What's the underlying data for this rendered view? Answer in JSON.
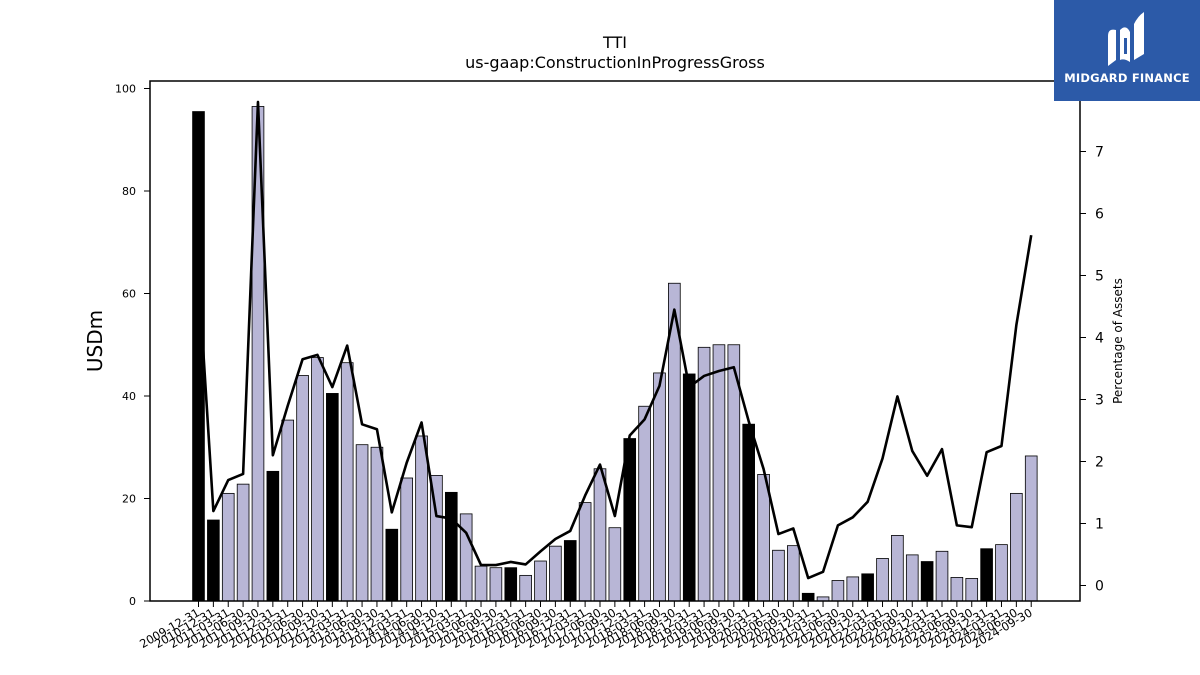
{
  "chart_data": {
    "type": "bar",
    "title": "TTI",
    "subtitle": "us-gaap:ConstructionInProgressGross",
    "ylabel": "USDm",
    "y2label": "Percentage of Assets",
    "ylim": [
      0,
      100
    ],
    "y2lim": [
      -0.25,
      8.0
    ],
    "yticks": [
      0,
      20,
      40,
      60,
      80,
      100
    ],
    "y2ticks": [
      0,
      1,
      2,
      3,
      4,
      5,
      6,
      7
    ],
    "categories": [
      "2009-12-31",
      "2010-12-31",
      "2011-03-31",
      "2011-06-30",
      "2011-09-30",
      "2011-12-31",
      "2012-03-31",
      "2012-06-30",
      "2012-09-30",
      "2012-12-31",
      "2013-03-31",
      "2013-06-30",
      "2013-09-30",
      "2013-12-31",
      "2014-03-31",
      "2014-06-30",
      "2014-09-30",
      "2014-12-31",
      "2015-03-31",
      "2015-06-30",
      "2015-09-30",
      "2015-12-31",
      "2016-03-31",
      "2016-06-30",
      "2016-09-30",
      "2016-12-31",
      "2017-03-31",
      "2017-06-30",
      "2017-09-30",
      "2017-12-31",
      "2018-03-31",
      "2018-06-30",
      "2018-09-30",
      "2018-12-31",
      "2019-03-31",
      "2019-06-30",
      "2019-09-30",
      "2019-12-31",
      "2020-03-31",
      "2020-06-30",
      "2020-09-30",
      "2020-12-31",
      "2021-03-31",
      "2021-06-30",
      "2021-09-30",
      "2021-12-31",
      "2022-03-31",
      "2022-06-30",
      "2022-09-30",
      "2022-12-31",
      "2023-03-31",
      "2023-06-30",
      "2023-09-30",
      "2023-12-31",
      "2024-03-31",
      "2024-06-30",
      "2024-09-30"
    ],
    "series": [
      {
        "type": "bar",
        "values": [
          95.5,
          15.8,
          21.0,
          22.8,
          96.5,
          25.3,
          35.3,
          44.0,
          47.5,
          40.5,
          46.5,
          30.5,
          30.0,
          14.0,
          24.0,
          32.2,
          24.5,
          21.2,
          17.0,
          6.8,
          6.5,
          6.5,
          5.0,
          7.8,
          10.7,
          11.8,
          19.2,
          25.8,
          14.3,
          31.7,
          38.0,
          44.5,
          62.0,
          44.3,
          49.5,
          50.0,
          50.0,
          34.5,
          24.7,
          9.9,
          10.8,
          1.5,
          0.8,
          4.0,
          4.7,
          5.3,
          8.3,
          12.8,
          9.0,
          7.7,
          9.7,
          4.6,
          4.4,
          10.2,
          11.0,
          21.0,
          28.3
        ]
      },
      {
        "type": "line",
        "axis": "right",
        "values": [
          5.0,
          1.2,
          1.7,
          1.8,
          7.8,
          2.1,
          2.9,
          3.65,
          3.72,
          3.2,
          3.87,
          2.6,
          2.52,
          1.18,
          1.98,
          2.63,
          1.12,
          1.08,
          0.85,
          0.33,
          0.33,
          0.38,
          0.34,
          0.55,
          0.75,
          0.88,
          1.45,
          1.95,
          1.12,
          2.42,
          2.68,
          3.22,
          4.45,
          3.2,
          3.38,
          3.46,
          3.52,
          2.65,
          1.88,
          0.83,
          0.92,
          0.12,
          0.22,
          0.97,
          1.1,
          1.35,
          2.05,
          3.05,
          2.17,
          1.77,
          2.2,
          0.97,
          0.94,
          2.15,
          2.25,
          4.2,
          5.65
        ]
      }
    ],
    "dark_bar_categories": [
      "2009-12-31",
      "2010-12-31",
      "2011-12-31",
      "2012-12-31",
      "2013-12-31",
      "2014-12-31",
      "2015-12-31",
      "2016-12-31",
      "2017-12-31",
      "2018-12-31",
      "2019-12-31",
      "2020-12-31",
      "2021-12-31",
      "2022-12-31",
      "2023-12-31"
    ],
    "colors": {
      "bar": "#b8b6d6",
      "bar_dark": "#000000",
      "line": "#000000",
      "logo_bg": "#2c5aa8"
    },
    "grid": false,
    "legend": "none"
  },
  "logo": {
    "text": "MIDGARD FINANCE",
    "icon": "midgard-logo-icon"
  }
}
